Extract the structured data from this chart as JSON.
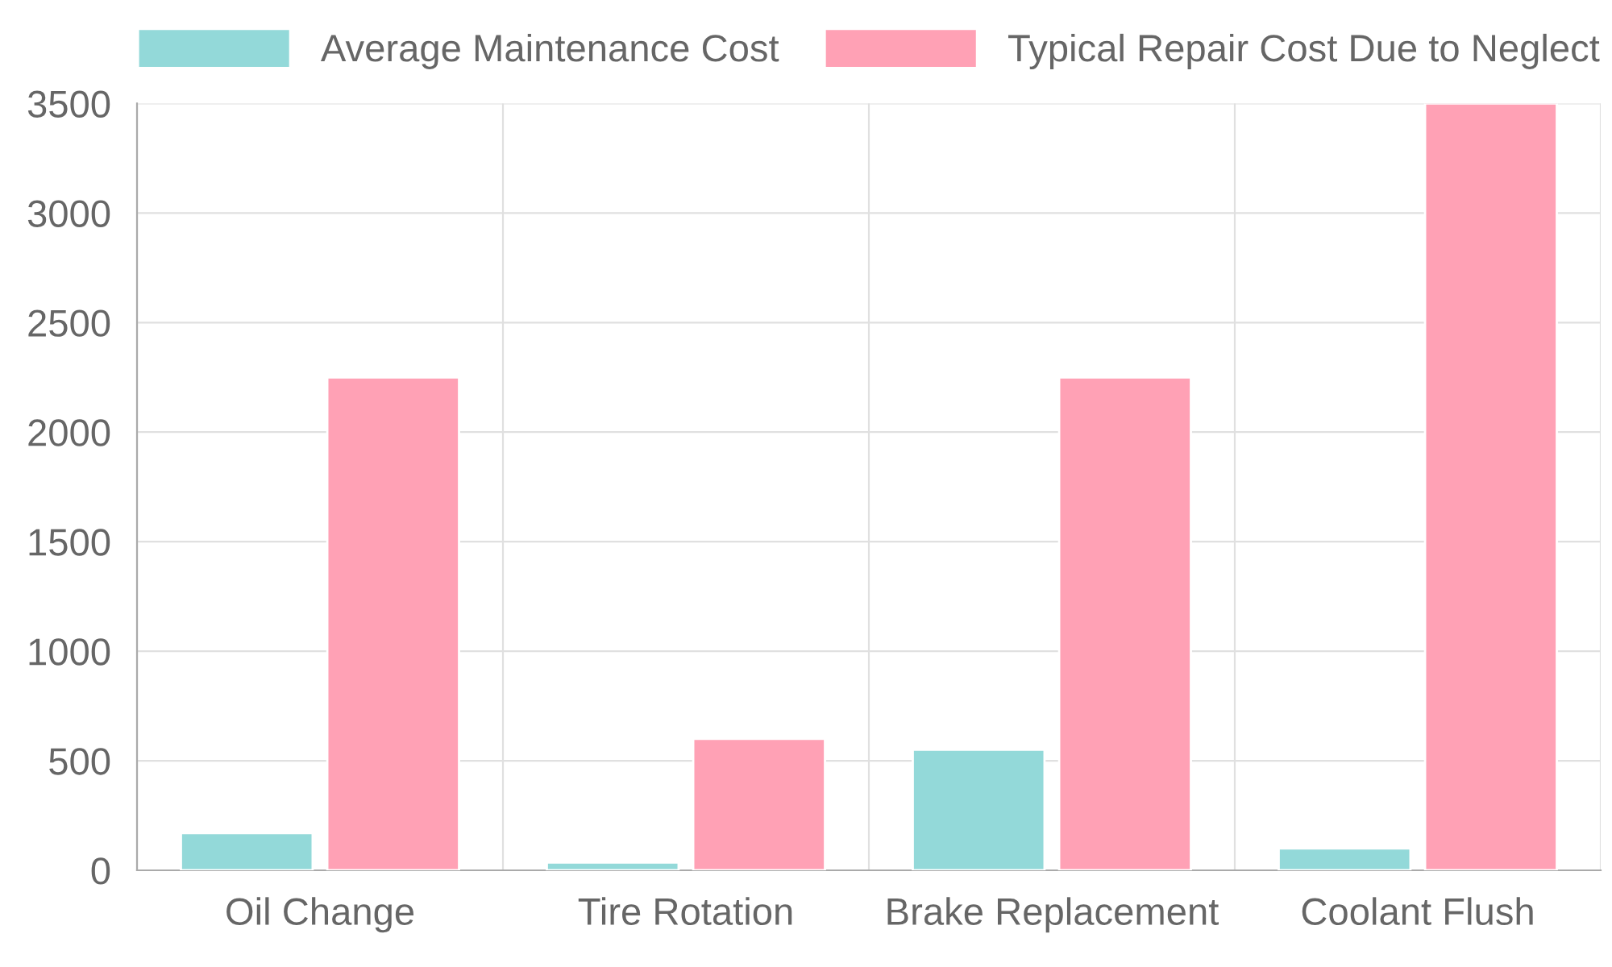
{
  "chart_data": {
    "type": "bar",
    "categories": [
      "Oil Change",
      "Tire Rotation",
      "Brake Replacement",
      "Coolant Flush"
    ],
    "series": [
      {
        "name": "Average Maintenance Cost",
        "color": "#93d9d9",
        "values": [
          170,
          35,
          550,
          100
        ]
      },
      {
        "name": "Typical Repair Cost Due to Neglect",
        "color": "#ffa1b5",
        "values": [
          2250,
          600,
          2250,
          3500
        ]
      }
    ],
    "ylim": [
      0,
      3500
    ],
    "yticks": [
      0,
      500,
      1000,
      1500,
      2000,
      2500,
      3000,
      3500
    ],
    "grid": true,
    "legend": "top"
  }
}
